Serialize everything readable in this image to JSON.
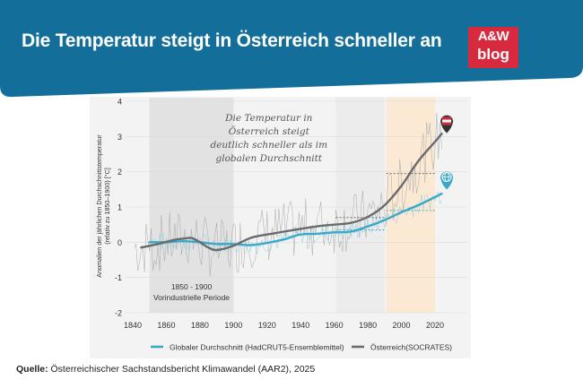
{
  "header": {
    "title": "Die Temperatur steigt in Österreich schneller an",
    "logo_top": "A&W",
    "logo_bottom": "blog",
    "banner_color": "#136e9a",
    "logo_color": "#d72a3f"
  },
  "source": {
    "label": "Quelle:",
    "text": "Österreichischer Sachstandsbericht Klimawandel (AAR2), 2025"
  },
  "chart_data": {
    "type": "line",
    "ylabel_line1": "Anomalien der jährlichen Durchschnittstemperatur",
    "ylabel_line2": "(relativ zu 1850–1900) [°C]",
    "xlim": [
      1838,
      2032
    ],
    "ylim": [
      -2,
      4
    ],
    "x_ticks": [
      1840,
      1860,
      1880,
      1900,
      1920,
      1940,
      1960,
      1980,
      2000,
      2020
    ],
    "y_ticks": [
      -2,
      -1,
      0,
      1,
      2,
      3,
      4
    ],
    "annotation": {
      "lines": [
        "Die Temperatur in",
        "Österreich steigt",
        "deutlich schneller als im",
        "globalen Durchschnitt"
      ]
    },
    "preindustrial": {
      "label_line1": "1850 - 1900",
      "label_line2": "Vorindustrielle Periode",
      "range": [
        1850,
        1900
      ]
    },
    "shaded_periods": [
      {
        "name": "preindustrial",
        "range": [
          1850,
          1900
        ],
        "color": "#e2e2e2"
      },
      {
        "name": "reference-1961-1990",
        "range": [
          1961,
          1990
        ],
        "color": "#ececec"
      },
      {
        "name": "recent-1991-2020",
        "range": [
          1991,
          2020
        ],
        "color": "#fbe9d4"
      }
    ],
    "reference_levels": [
      {
        "series": "austria",
        "range": [
          1961,
          1990
        ],
        "value": 0.7
      },
      {
        "series": "austria",
        "range": [
          1991,
          2020
        ],
        "value": 1.95
      },
      {
        "series": "global",
        "range": [
          1961,
          1990
        ],
        "value": 0.35
      },
      {
        "series": "global",
        "range": [
          1991,
          2020
        ],
        "value": 0.9
      }
    ],
    "series": [
      {
        "name": "Globaler Durchschnitt (HadCRUT5-Ensemblemittel)",
        "key": "global",
        "color": "#3aa8c8",
        "x": [
          1850,
          1860,
          1870,
          1880,
          1890,
          1900,
          1910,
          1920,
          1930,
          1940,
          1950,
          1960,
          1970,
          1980,
          1990,
          2000,
          2010,
          2020,
          2024
        ],
        "values": [
          0.0,
          0.0,
          0.03,
          0.0,
          -0.05,
          -0.05,
          -0.08,
          -0.02,
          0.08,
          0.22,
          0.24,
          0.28,
          0.3,
          0.45,
          0.63,
          0.85,
          1.05,
          1.28,
          1.38
        ]
      },
      {
        "name": "Österreich(SOCRATES)",
        "key": "austria",
        "color": "#6b6b6b",
        "x": [
          1845,
          1855,
          1865,
          1870,
          1875,
          1880,
          1885,
          1890,
          1900,
          1910,
          1920,
          1930,
          1940,
          1950,
          1960,
          1970,
          1980,
          1990,
          2000,
          2010,
          2020,
          2024
        ],
        "values": [
          -0.15,
          -0.05,
          0.07,
          0.1,
          0.12,
          0.0,
          -0.15,
          -0.22,
          -0.1,
          0.12,
          0.22,
          0.3,
          0.38,
          0.45,
          0.5,
          0.55,
          0.72,
          1.05,
          1.6,
          2.3,
          2.85,
          3.08
        ]
      }
    ],
    "raw_series_note": "",
    "markers": [
      {
        "series": "austria",
        "icon": "austria-flag-icon",
        "value": 3.35
      },
      {
        "series": "global",
        "icon": "globe-icon",
        "value": 1.75
      }
    ]
  }
}
